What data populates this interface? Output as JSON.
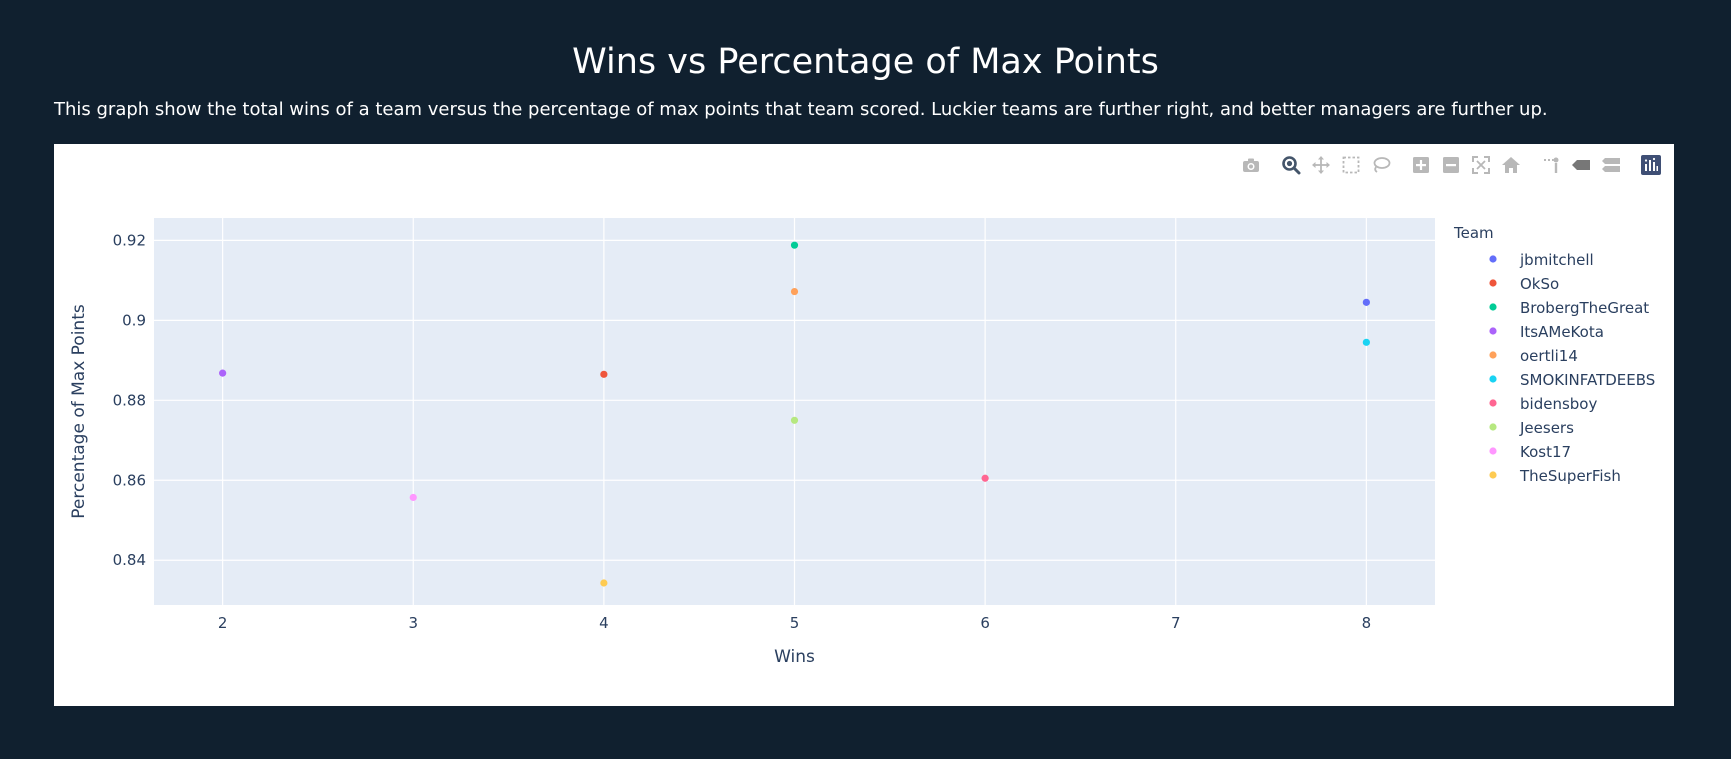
{
  "header": {
    "title": "Wins vs Percentage of Max Points",
    "description": "This graph show the total wins of a team versus the percentage of max points that team scored. Luckier teams are further right, and better managers are further up."
  },
  "modebar": {
    "buttons": [
      {
        "name": "camera-icon"
      },
      {
        "name": "zoom-icon",
        "active": true
      },
      {
        "name": "pan-icon"
      },
      {
        "name": "box-select-icon"
      },
      {
        "name": "lasso-select-icon"
      },
      {
        "name": "zoom-in-icon"
      },
      {
        "name": "zoom-out-icon"
      },
      {
        "name": "autoscale-icon"
      },
      {
        "name": "reset-axes-icon"
      },
      {
        "name": "spike-lines-icon"
      },
      {
        "name": "hover-closest-icon"
      },
      {
        "name": "hover-compare-icon"
      },
      {
        "name": "plotly-logo-icon"
      }
    ]
  },
  "chart_data": {
    "type": "scatter",
    "title": "",
    "xlabel": "Wins",
    "ylabel": "Percentage of Max Points",
    "xlim": [
      1.64,
      8.36
    ],
    "ylim": [
      0.8288,
      0.9256
    ],
    "xticks": [
      2,
      3,
      4,
      5,
      6,
      7,
      8
    ],
    "yticks": [
      0.84,
      0.86,
      0.88,
      0.9,
      0.92
    ],
    "ytick_labels": [
      "0.84",
      "0.86",
      "0.88",
      "0.9",
      "0.92"
    ],
    "grid": true,
    "plot_bg": "#e5ecf6",
    "legend": {
      "title": "Team",
      "placement": "right"
    },
    "series": [
      {
        "name": "jbmitchell",
        "color": "#636efa",
        "x": [
          8
        ],
        "y": [
          0.9045
        ]
      },
      {
        "name": "OkSo",
        "color": "#ef553b",
        "x": [
          4
        ],
        "y": [
          0.8865
        ]
      },
      {
        "name": "BrobergTheGreat",
        "color": "#00cc96",
        "x": [
          5
        ],
        "y": [
          0.9188
        ]
      },
      {
        "name": "ItsAMeKota",
        "color": "#ab63fa",
        "x": [
          2
        ],
        "y": [
          0.8868
        ]
      },
      {
        "name": "oertli14",
        "color": "#ffa15a",
        "x": [
          5
        ],
        "y": [
          0.9072
        ]
      },
      {
        "name": "SMOKINFATDEEBS",
        "color": "#19d3f3",
        "x": [
          8
        ],
        "y": [
          0.8945
        ]
      },
      {
        "name": "bidensboy",
        "color": "#ff6692",
        "x": [
          6
        ],
        "y": [
          0.8605
        ]
      },
      {
        "name": "Jeesers",
        "color": "#b6e880",
        "x": [
          5
        ],
        "y": [
          0.875
        ]
      },
      {
        "name": "Kost17",
        "color": "#ff97ff",
        "x": [
          3
        ],
        "y": [
          0.8557
        ]
      },
      {
        "name": "TheSuperFish",
        "color": "#fecb52",
        "x": [
          4
        ],
        "y": [
          0.8343
        ]
      }
    ]
  }
}
